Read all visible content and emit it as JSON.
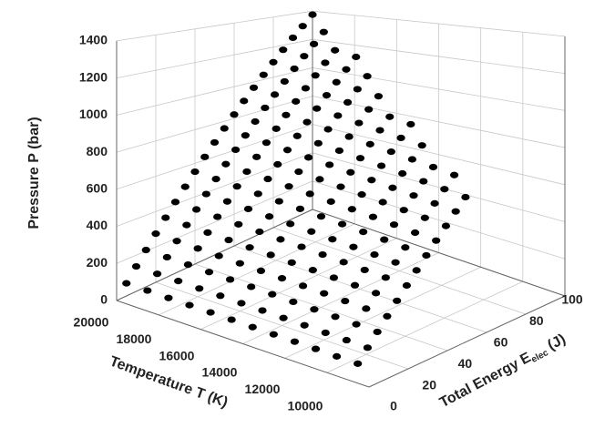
{
  "chart_data": {
    "type": "scatter3d",
    "xlabel": "Temperature T (K)",
    "ylabel": [
      "Total Energy E",
      "elec",
      "(J)"
    ],
    "zlabel": "Pressure P (bar)",
    "xlim": [
      8000,
      20000
    ],
    "xticks": [
      10000,
      12000,
      14000,
      16000,
      18000,
      20000
    ],
    "ylim": [
      0,
      100
    ],
    "yticks": [
      0,
      20,
      40,
      60,
      80,
      100
    ],
    "zlim": [
      0,
      1400
    ],
    "zticks": [
      0,
      200,
      400,
      600,
      800,
      1000,
      1200,
      1400
    ],
    "grid": true,
    "color": "#000000",
    "x": [
      9000,
      10000,
      11000,
      12000,
      13000,
      14000,
      15000,
      16000,
      17000,
      18000,
      19000,
      20000
    ],
    "y": [
      [
        5,
        10,
        15,
        20,
        25,
        30,
        35,
        40,
        45,
        50,
        55,
        60
      ],
      [
        5,
        10,
        15,
        20,
        25,
        30,
        35,
        40,
        45,
        50,
        55,
        60,
        65
      ],
      [
        5,
        10,
        15,
        20,
        25,
        30,
        35,
        40,
        45,
        50,
        55,
        60,
        65
      ],
      [
        5,
        10,
        15,
        20,
        25,
        30,
        35,
        40,
        45,
        50,
        55,
        60,
        65,
        70
      ],
      [
        5,
        10,
        15,
        20,
        25,
        30,
        35,
        40,
        45,
        50,
        55,
        60,
        65,
        70,
        75
      ],
      [
        5,
        10,
        15,
        20,
        25,
        30,
        35,
        40,
        45,
        50,
        55,
        60,
        65,
        70,
        75
      ],
      [
        5,
        10,
        15,
        20,
        25,
        30,
        35,
        40,
        45,
        50,
        55,
        60,
        65,
        70,
        75,
        80
      ],
      [
        5,
        10,
        15,
        20,
        25,
        30,
        35,
        40,
        45,
        50,
        55,
        60,
        65,
        70,
        75,
        80,
        85
      ],
      [
        5,
        10,
        15,
        20,
        25,
        30,
        35,
        40,
        45,
        50,
        55,
        60,
        65,
        70,
        75,
        80,
        85,
        90
      ],
      [
        5,
        10,
        15,
        20,
        25,
        30,
        35,
        40,
        45,
        50,
        55,
        60,
        65,
        70,
        75,
        80,
        85,
        90
      ],
      [
        5,
        10,
        15,
        20,
        25,
        30,
        35,
        40,
        45,
        50,
        55,
        60,
        65,
        70,
        75,
        80,
        85,
        90,
        95
      ],
      [
        5,
        10,
        15,
        20,
        25,
        30,
        35,
        40,
        45,
        50,
        55,
        60,
        65,
        70,
        75,
        80,
        85,
        90,
        95,
        100
      ]
    ],
    "z": [
      [
        55,
        110,
        165,
        220,
        275,
        330,
        385,
        440,
        495,
        550,
        605,
        660
      ],
      [
        56,
        113,
        169,
        225,
        281,
        338,
        394,
        450,
        506,
        563,
        619,
        675,
        731
      ],
      [
        58,
        115,
        173,
        230,
        288,
        345,
        403,
        460,
        518,
        575,
        633,
        690,
        748
      ],
      [
        59,
        118,
        176,
        235,
        294,
        353,
        411,
        470,
        529,
        588,
        646,
        705,
        764,
        823
      ],
      [
        60,
        120,
        180,
        240,
        300,
        360,
        420,
        480,
        540,
        600,
        660,
        720,
        780,
        840,
        900
      ],
      [
        61,
        123,
        184,
        245,
        306,
        368,
        429,
        490,
        551,
        613,
        674,
        735,
        796,
        858,
        919
      ],
      [
        63,
        125,
        188,
        250,
        313,
        375,
        438,
        500,
        563,
        625,
        688,
        750,
        813,
        875,
        938,
        1000
      ],
      [
        64,
        128,
        191,
        255,
        319,
        383,
        446,
        510,
        574,
        638,
        701,
        765,
        829,
        893,
        956,
        1020,
        1084
      ],
      [
        65,
        130,
        195,
        260,
        325,
        390,
        455,
        520,
        585,
        650,
        715,
        780,
        845,
        910,
        975,
        1040,
        1105,
        1170
      ],
      [
        66,
        133,
        199,
        265,
        331,
        398,
        464,
        530,
        596,
        663,
        729,
        795,
        861,
        928,
        994,
        1060,
        1126,
        1193
      ],
      [
        68,
        135,
        203,
        270,
        338,
        405,
        473,
        540,
        608,
        675,
        743,
        810,
        878,
        945,
        1013,
        1080,
        1148,
        1215,
        1283
      ],
      [
        69,
        138,
        206,
        275,
        344,
        413,
        481,
        550,
        619,
        688,
        756,
        825,
        894,
        963,
        1031,
        1100,
        1169,
        1238,
        1306,
        1375
      ]
    ]
  }
}
